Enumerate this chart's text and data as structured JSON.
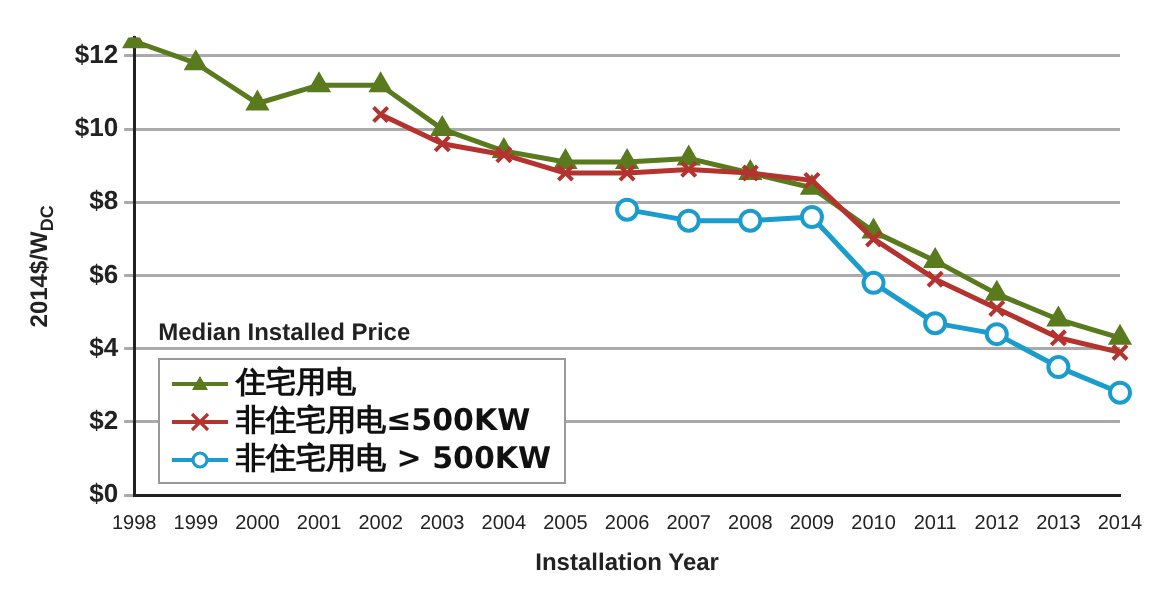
{
  "chart_data": {
    "type": "line",
    "categories": [
      "1998",
      "1999",
      "2000",
      "2001",
      "2002",
      "2003",
      "2004",
      "2005",
      "2006",
      "2007",
      "2008",
      "2009",
      "2010",
      "2011",
      "2012",
      "2013",
      "2014"
    ],
    "xlabel": "Installation Year",
    "ylabel": "2014$/W$_{DC}$",
    "legend_title": "Median Installed Price",
    "legend": "bottom left",
    "ylim": [
      0,
      12.5
    ],
    "yticks": [
      {
        "value": 0,
        "label": "$0"
      },
      {
        "value": 2,
        "label": "$2"
      },
      {
        "value": 4,
        "label": "$4"
      },
      {
        "value": 6,
        "label": "$6"
      },
      {
        "value": 8,
        "label": "$8"
      },
      {
        "value": 10,
        "label": "$10"
      },
      {
        "value": 12,
        "label": "$12"
      }
    ],
    "grid": "y",
    "line_style": "solid",
    "series": [
      {
        "name": "住宅用电",
        "color": "#5a7a1e",
        "marker": "triangle",
        "values": [
          12.4,
          11.8,
          10.7,
          11.2,
          11.2,
          10.0,
          9.4,
          9.1,
          9.1,
          9.2,
          8.8,
          8.4,
          7.2,
          6.4,
          5.5,
          4.8,
          4.3
        ]
      },
      {
        "name": "非住宅用电≤500KW",
        "color": "#b5332e",
        "marker": "cross",
        "values": [
          null,
          null,
          null,
          null,
          10.4,
          9.6,
          9.3,
          8.8,
          8.8,
          8.9,
          8.8,
          8.6,
          7.0,
          5.9,
          5.1,
          4.3,
          3.9
        ]
      },
      {
        "name": "非住宅用电 > 500KW",
        "color": "#1a9ccc",
        "marker": "circle",
        "values": [
          null,
          null,
          null,
          null,
          null,
          null,
          null,
          null,
          7.8,
          7.5,
          7.5,
          7.6,
          5.8,
          4.7,
          4.4,
          3.5,
          2.8
        ]
      }
    ]
  }
}
